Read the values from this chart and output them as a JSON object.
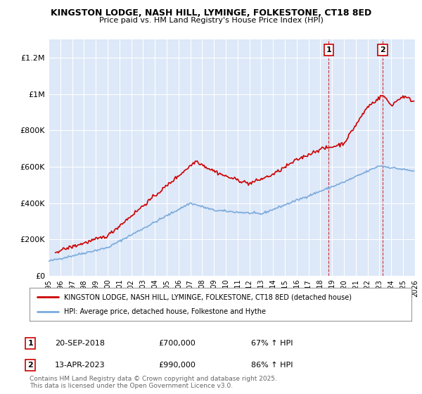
{
  "title": "KINGSTON LODGE, NASH HILL, LYMINGE, FOLKESTONE, CT18 8ED",
  "subtitle": "Price paid vs. HM Land Registry's House Price Index (HPI)",
  "background_color": "#ffffff",
  "plot_bg_color": "#dde8f8",
  "grid_color": "#ffffff",
  "annotation1": {
    "label": "1",
    "date": "20-SEP-2018",
    "price": "£700,000",
    "hpi": "67% ↑ HPI",
    "x_year": 2018.72
  },
  "annotation2": {
    "label": "2",
    "date": "13-APR-2023",
    "price": "£990,000",
    "hpi": "86% ↑ HPI",
    "x_year": 2023.28
  },
  "legend_line1": "KINGSTON LODGE, NASH HILL, LYMINGE, FOLKESTONE, CT18 8ED (detached house)",
  "legend_line2": "HPI: Average price, detached house, Folkestone and Hythe",
  "footnote": "Contains HM Land Registry data © Crown copyright and database right 2025.\nThis data is licensed under the Open Government Licence v3.0.",
  "red_color": "#cc0000",
  "blue_color": "#7aaadd",
  "ylim": [
    0,
    1300000
  ],
  "xlim_start": 1995,
  "xlim_end": 2026,
  "yticks": [
    0,
    200000,
    400000,
    600000,
    800000,
    1000000,
    1200000
  ],
  "ytick_labels": [
    "£0",
    "£200K",
    "£400K",
    "£600K",
    "£800K",
    "£1M",
    "£1.2M"
  ]
}
